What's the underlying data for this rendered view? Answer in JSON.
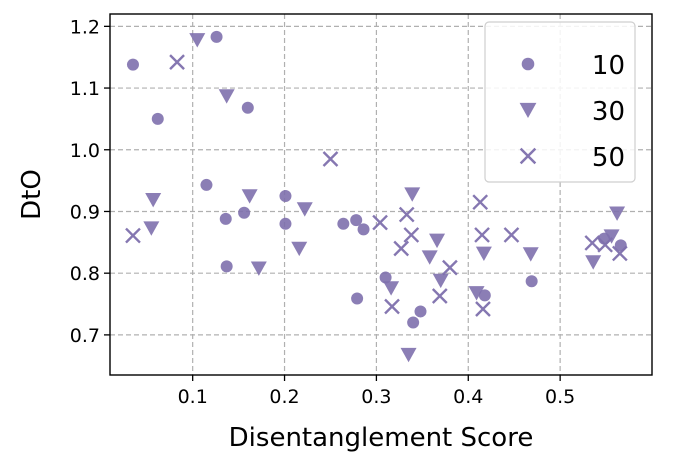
{
  "chart_data": {
    "type": "scatter",
    "title": "",
    "xlabel": "Disentanglement Score",
    "ylabel": "DtO",
    "xlim": [
      0.01,
      0.6
    ],
    "ylim": [
      0.635,
      1.22
    ],
    "xticks": [
      0.1,
      0.2,
      0.3,
      0.4,
      0.5
    ],
    "yticks": [
      0.7,
      0.8,
      0.9,
      1.0,
      1.1,
      1.2
    ],
    "xtick_labels": [
      "0.1",
      "0.2",
      "0.3",
      "0.4",
      "0.5"
    ],
    "ytick_labels": [
      "0.7",
      "0.8",
      "0.9",
      "1.0",
      "1.1",
      "1.2"
    ],
    "grid": true,
    "legend_position": "top-right",
    "color": "#7e70ad",
    "series": [
      {
        "name": "10",
        "marker": "circle",
        "points": [
          [
            0.035,
            1.138
          ],
          [
            0.062,
            1.05
          ],
          [
            0.115,
            0.943
          ],
          [
            0.126,
            1.183
          ],
          [
            0.136,
            0.888
          ],
          [
            0.137,
            0.811
          ],
          [
            0.156,
            0.898
          ],
          [
            0.16,
            1.068
          ],
          [
            0.201,
            0.925
          ],
          [
            0.201,
            0.88
          ],
          [
            0.264,
            0.88
          ],
          [
            0.278,
            0.886
          ],
          [
            0.286,
            0.871
          ],
          [
            0.279,
            0.759
          ],
          [
            0.31,
            0.793
          ],
          [
            0.34,
            0.72
          ],
          [
            0.348,
            0.738
          ],
          [
            0.418,
            0.764
          ],
          [
            0.469,
            0.787
          ],
          [
            0.548,
            0.856
          ],
          [
            0.566,
            0.845
          ]
        ]
      },
      {
        "name": "30",
        "marker": "triangle-down",
        "points": [
          [
            0.055,
            0.873
          ],
          [
            0.057,
            0.919
          ],
          [
            0.105,
            1.178
          ],
          [
            0.137,
            1.087
          ],
          [
            0.162,
            0.925
          ],
          [
            0.172,
            0.808
          ],
          [
            0.216,
            0.84
          ],
          [
            0.222,
            0.904
          ],
          [
            0.316,
            0.776
          ],
          [
            0.335,
            0.668
          ],
          [
            0.339,
            0.928
          ],
          [
            0.358,
            0.826
          ],
          [
            0.366,
            0.853
          ],
          [
            0.37,
            0.788
          ],
          [
            0.409,
            0.768
          ],
          [
            0.417,
            0.832
          ],
          [
            0.468,
            0.831
          ],
          [
            0.536,
            0.818
          ],
          [
            0.556,
            0.86
          ],
          [
            0.562,
            0.897
          ]
        ]
      },
      {
        "name": "50",
        "marker": "x",
        "points": [
          [
            0.035,
            0.861
          ],
          [
            0.083,
            1.142
          ],
          [
            0.25,
            0.985
          ],
          [
            0.304,
            0.882
          ],
          [
            0.317,
            0.746
          ],
          [
            0.327,
            0.84
          ],
          [
            0.333,
            0.895
          ],
          [
            0.338,
            0.862
          ],
          [
            0.369,
            0.763
          ],
          [
            0.38,
            0.809
          ],
          [
            0.413,
            0.915
          ],
          [
            0.415,
            0.862
          ],
          [
            0.416,
            0.742
          ],
          [
            0.447,
            0.862
          ],
          [
            0.535,
            0.849
          ],
          [
            0.549,
            0.846
          ],
          [
            0.565,
            0.832
          ]
        ]
      }
    ]
  }
}
